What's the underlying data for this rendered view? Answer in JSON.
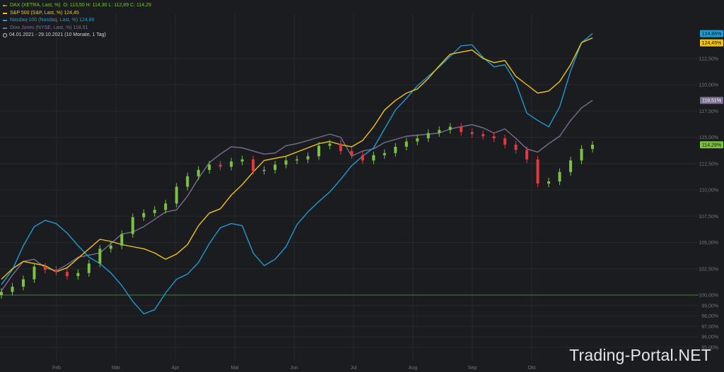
{
  "legend": {
    "dax": "DAX (XETRA, Last, %)",
    "dax_ohlc": "O: 113,50  H: 114,30  L: 112,89  C: 114,29",
    "sp500": "S&P 500 (S&P, Last, %)  124,45",
    "nasdaq": "Nasdaq-100 (Nasdaq, Last, %)  124,86",
    "dow": "Dow Jones (NYSE, Last, %)  118,51",
    "period": "04.01.2021 - 29.10.2021  (10 Monate, 1 Tag)"
  },
  "watermark": "Trading-Portal.NET",
  "colors": {
    "background": "#1b1c1f",
    "grid": "#26282c",
    "baseline": "#3f7f2c",
    "up": "#7bc242",
    "down": "#e8373c",
    "sp500": "#f2c515",
    "nasdaq": "#1f9bd1",
    "dow": "#7a6e91",
    "axis_text": "#6f757b"
  },
  "chart_data": {
    "type": "line",
    "title": "",
    "xlabel": "",
    "ylabel": "",
    "y_unit": "%",
    "ylim": [
      95.0,
      127.0
    ],
    "grid": true,
    "legend_position": "top-left",
    "x_ticks": [
      "Feb",
      "Mär",
      "Apr",
      "Mai",
      "Jun",
      "Jul",
      "Aug",
      "Sep",
      "Okt"
    ],
    "y_ticks": [
      "95,00%",
      "96,00%",
      "97,00%",
      "98,00%",
      "99,00%",
      "100,00%",
      "102,50%",
      "105,00%",
      "107,50%",
      "110,00%",
      "112,50%",
      "115,00%",
      "117,50%",
      "120,00%",
      "122,50%"
    ],
    "y_tick_values": [
      95,
      96,
      97,
      98,
      99,
      100,
      102.5,
      105,
      107.5,
      110,
      112.5,
      115,
      117.5,
      120,
      122.5
    ],
    "baseline": 100,
    "last_value_labels": [
      {
        "series": "Nasdaq-100",
        "label": "124,86%",
        "value": 124.86
      },
      {
        "series": "S&P 500",
        "label": "124,45%",
        "value": 124.45
      },
      {
        "series": "Dow Jones",
        "label": "118,51%",
        "value": 118.51
      },
      {
        "series": "DAX",
        "label": "114,29%",
        "value": 114.29
      }
    ],
    "series": [
      {
        "name": "S&P 500 (S&P, Last, %)",
        "values": [
          101.5,
          102.5,
          103.2,
          103.0,
          102.8,
          102.2,
          102.6,
          103.5,
          104.4,
          105.3,
          105.1,
          104.8,
          104.6,
          104.4,
          104.0,
          103.4,
          103.9,
          104.8,
          106.6,
          107.8,
          108.2,
          109.5,
          110.5,
          111.7,
          112.8,
          113.0,
          113.2,
          113.6,
          114.0,
          114.4,
          114.6,
          114.3,
          114.1,
          114.7,
          116.0,
          117.6,
          118.5,
          119.2,
          119.6,
          120.6,
          121.8,
          122.9,
          123.1,
          123.3,
          122.5,
          122.1,
          122.3,
          120.8,
          120.0,
          119.2,
          119.4,
          120.3,
          121.9,
          124.0,
          124.45
        ]
      },
      {
        "name": "Nasdaq-100 (Nasdaq, Last, %)",
        "values": [
          101.0,
          102.4,
          104.7,
          106.5,
          107.1,
          106.8,
          105.9,
          104.7,
          103.6,
          103.0,
          102.1,
          100.9,
          99.4,
          98.2,
          98.6,
          100.2,
          101.5,
          102.0,
          103.1,
          104.9,
          106.4,
          106.8,
          106.6,
          104.0,
          102.8,
          103.4,
          104.6,
          106.7,
          107.9,
          108.9,
          109.8,
          111.0,
          112.3,
          113.2,
          114.0,
          115.8,
          117.6,
          118.7,
          119.9,
          120.8,
          121.7,
          122.7,
          123.7,
          123.8,
          122.6,
          121.7,
          121.9,
          120.2,
          117.3,
          116.6,
          116.0,
          117.9,
          121.3,
          124.0,
          124.86
        ]
      },
      {
        "name": "Dow Jones (NYSE, Last, %)",
        "values": [
          100.4,
          101.9,
          103.2,
          103.4,
          102.6,
          102.3,
          102.9,
          103.6,
          103.8,
          104.0,
          104.9,
          105.8,
          106.0,
          106.5,
          107.2,
          107.9,
          108.1,
          109.4,
          111.1,
          112.6,
          113.4,
          114.1,
          114.0,
          113.7,
          113.4,
          113.5,
          114.2,
          114.4,
          114.7,
          115.0,
          115.3,
          115.0,
          113.2,
          113.7,
          113.9,
          114.5,
          114.8,
          115.1,
          115.2,
          115.3,
          115.4,
          115.8,
          116.0,
          116.2,
          115.9,
          115.4,
          115.8,
          114.9,
          113.9,
          113.6,
          114.4,
          115.1,
          116.6,
          117.8,
          118.51
        ]
      },
      {
        "name": "DAX (XETRA, Last, %)",
        "values": [
          100.3,
          100.8,
          101.5,
          102.7,
          102.4,
          102.2,
          101.8,
          102.1,
          103.0,
          104.4,
          104.7,
          105.8,
          107.4,
          107.8,
          108.1,
          108.7,
          110.3,
          111.3,
          111.9,
          112.4,
          112.2,
          112.7,
          112.9,
          111.8,
          111.9,
          112.4,
          112.8,
          112.9,
          113.2,
          114.2,
          114.4,
          113.7,
          113.3,
          112.8,
          113.3,
          113.5,
          114.1,
          114.6,
          114.9,
          115.4,
          115.7,
          116.0,
          115.5,
          115.3,
          115.1,
          114.9,
          114.3,
          113.8,
          112.9,
          110.6,
          110.8,
          111.7,
          112.8,
          113.9,
          114.29
        ]
      }
    ]
  }
}
